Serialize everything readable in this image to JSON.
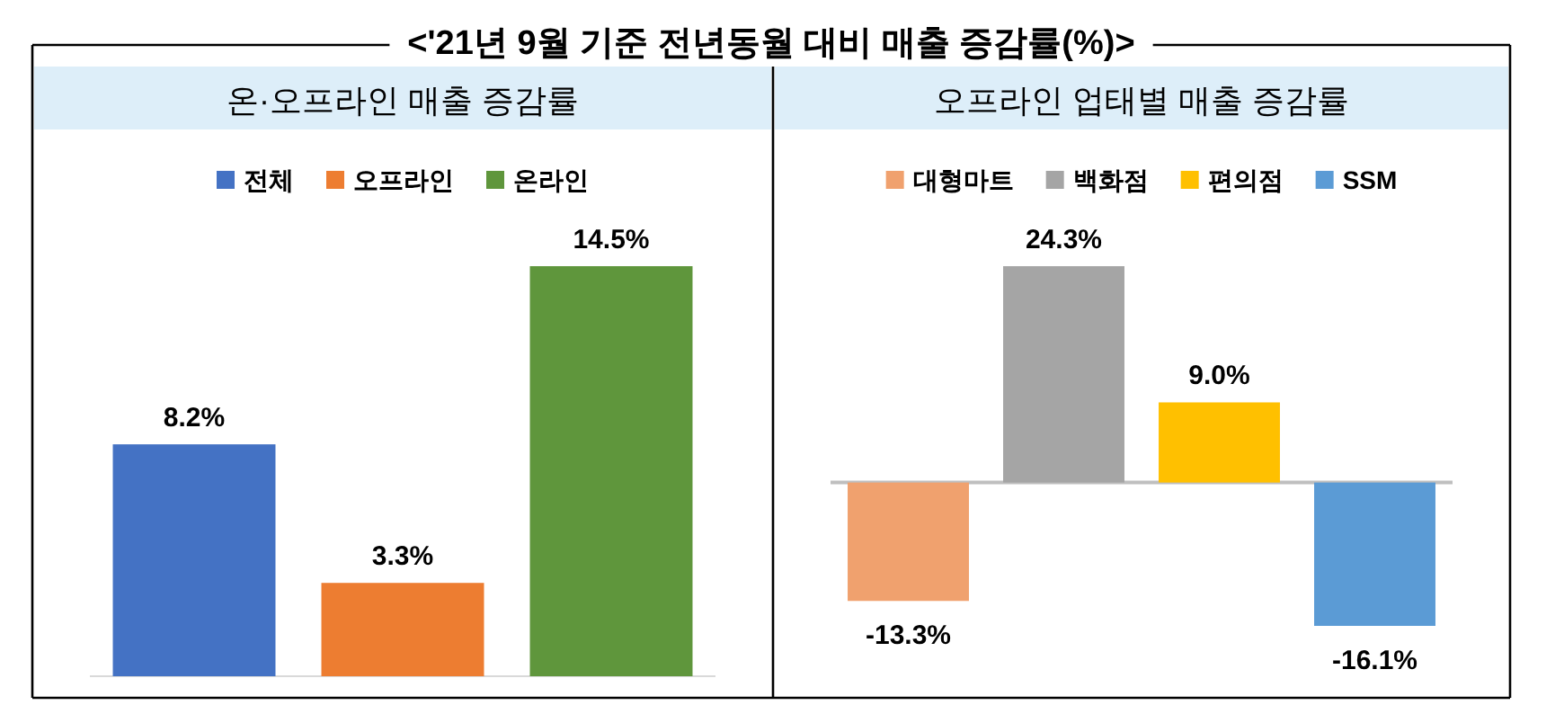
{
  "chart_data": [
    {
      "type": "other",
      "title": "<'21년 9월 기준 전년동월 대비 매출 증감률(%)>"
    },
    {
      "type": "bar",
      "title": "온·오프라인 매출 증감률",
      "categories": [
        null
      ],
      "legend": "top",
      "series": [
        {
          "name": "전체",
          "color": "#4472c4",
          "values": [
            8.2
          ],
          "value_labels": [
            "8.2%"
          ]
        },
        {
          "name": "오프라인",
          "color": "#ed7d31",
          "values": [
            3.3
          ],
          "value_labels": [
            "3.3%"
          ]
        },
        {
          "name": "온라인",
          "color": "#5f963c",
          "values": [
            14.5
          ],
          "value_labels": [
            "14.5%"
          ]
        }
      ]
    },
    {
      "type": "bar",
      "title": "오프라인 업태별 매출 증감률",
      "categories": [
        null
      ],
      "legend": "top",
      "series": [
        {
          "name": "대형마트",
          "color": "#f0a16e",
          "values": [
            -13.3
          ],
          "value_labels": [
            "-13.3%"
          ]
        },
        {
          "name": "백화점",
          "color": "#a5a5a5",
          "values": [
            24.3
          ],
          "value_labels": [
            "24.3%"
          ]
        },
        {
          "name": "편의점",
          "color": "#ffc000",
          "values": [
            9.0
          ],
          "value_labels": [
            "9.0%"
          ]
        },
        {
          "name": "SSM",
          "color": "#5b9bd5",
          "values": [
            -16.1
          ],
          "value_labels": [
            "-16.1%"
          ]
        }
      ]
    }
  ]
}
